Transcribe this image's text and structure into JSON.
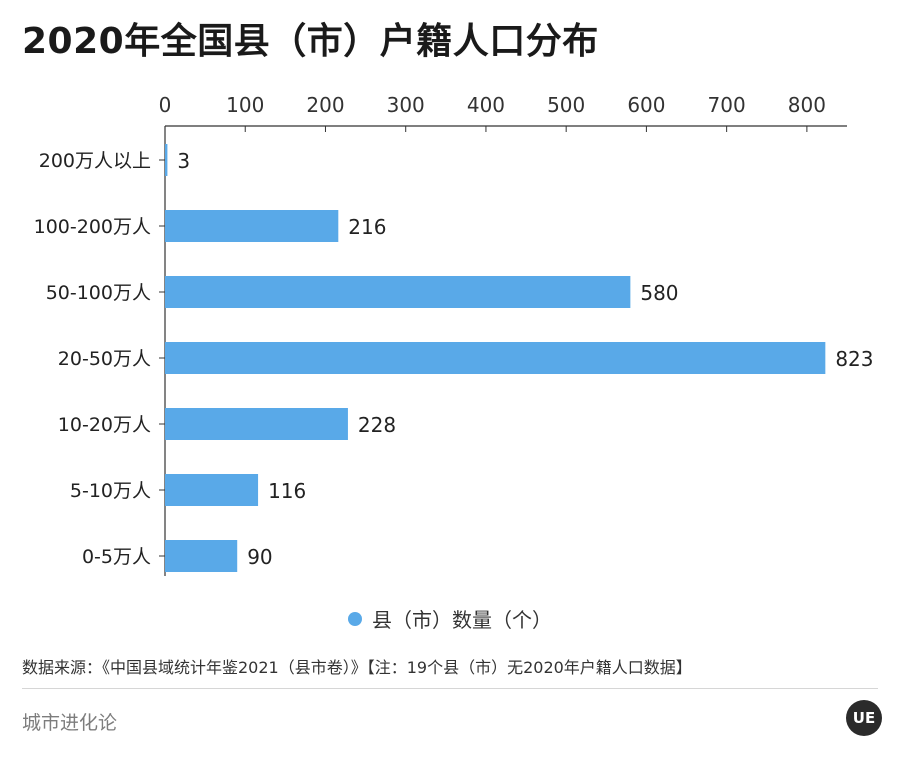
{
  "title": "2020年全国县（市）户籍人口分布",
  "legend_label": "县（市）数量（个）",
  "source": "数据来源：《中国县域统计年鉴2021（县市卷）》【注：19个县（市）无2020年户籍人口数据】",
  "brand": "城市进化论",
  "logo_text": "UE",
  "colors": {
    "bar": "#59a9e8",
    "axis": "#333333"
  },
  "chart_data": {
    "type": "bar",
    "orientation": "horizontal",
    "title": "2020年全国县（市）户籍人口分布",
    "xlabel": "",
    "ylabel": "",
    "xlim": [
      0,
      850
    ],
    "x_ticks": [
      "0",
      "100",
      "200",
      "300",
      "400",
      "500",
      "600",
      "700",
      "800"
    ],
    "categories": [
      "200万人以上",
      "100-200万人",
      "50-100万人",
      "20-50万人",
      "10-20万人",
      "5-10万人",
      "0-5万人"
    ],
    "series": [
      {
        "name": "县（市）数量（个）",
        "values": [
          3,
          216,
          580,
          823,
          228,
          116,
          90
        ]
      }
    ],
    "value_labels": [
      "3",
      "216",
      "580",
      "823",
      "228",
      "116",
      "90"
    ],
    "grid": false,
    "legend_position": "bottom"
  }
}
